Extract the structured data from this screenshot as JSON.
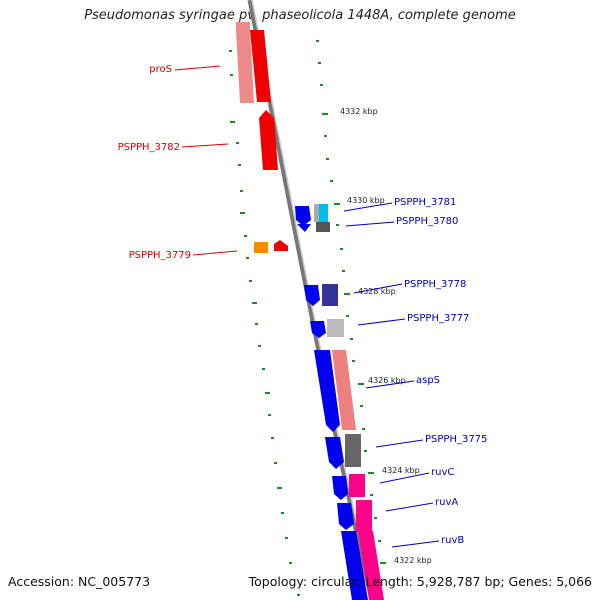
{
  "title": "Pseudomonas syringae pv. phaseolicola 1448A, complete genome",
  "footer": {
    "accession": "Accession: NC_005773",
    "topology": "Topology: circular; Length: 5,928,787 bp; Genes: 5,066"
  },
  "colors": {
    "reverse_label": "#dd0000",
    "forward_label": "#0000bb",
    "tick": "#228822",
    "backbone": "#888888"
  },
  "scale_labels": [
    "4332 kbp",
    "4330 kbp",
    "4328 kbp",
    "4326 kbp",
    "4324 kbp",
    "4322 kbp"
  ],
  "reverse_genes": [
    "proS",
    "PSPPH_3782",
    "PSPPH_3779"
  ],
  "forward_genes": [
    "PSPPH_3781",
    "PSPPH_3780",
    "PSPPH_3778",
    "PSPPH_3777",
    "aspS",
    "PSPPH_3775",
    "ruvC",
    "ruvA",
    "ruvB"
  ]
}
